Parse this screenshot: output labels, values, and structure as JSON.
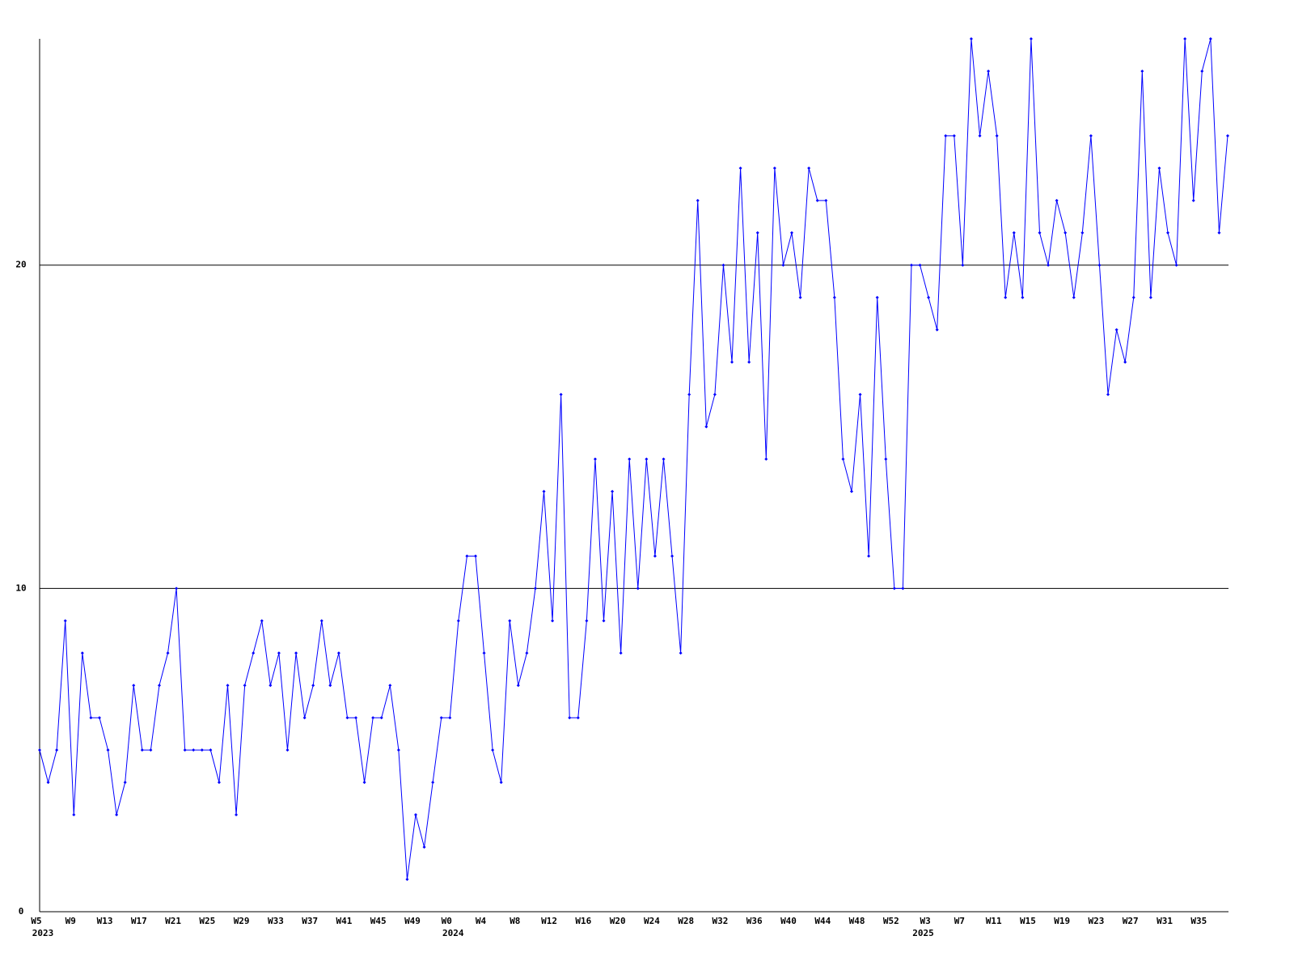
{
  "chart_data": {
    "type": "line",
    "categories": [
      "W5",
      null,
      null,
      null,
      "W9",
      null,
      null,
      null,
      "W13",
      null,
      null,
      null,
      "W17",
      null,
      null,
      null,
      "W21",
      null,
      null,
      null,
      "W25",
      null,
      null,
      null,
      "W29",
      null,
      null,
      null,
      "W33",
      null,
      null,
      null,
      "W37",
      null,
      null,
      null,
      "W41",
      null,
      null,
      null,
      "W45",
      null,
      null,
      null,
      "W49",
      null,
      null,
      null,
      "W0",
      null,
      null,
      null,
      "W4",
      null,
      null,
      null,
      "W8",
      null,
      null,
      null,
      "W12",
      null,
      null,
      null,
      "W16",
      null,
      null,
      null,
      "W20",
      null,
      null,
      null,
      "W24",
      null,
      null,
      null,
      "W28",
      null,
      null,
      null,
      "W32",
      null,
      null,
      null,
      "W36",
      null,
      null,
      null,
      "W40",
      null,
      null,
      null,
      "W44",
      null,
      null,
      null,
      "W48",
      null,
      null,
      null,
      "W52",
      null,
      null,
      null,
      "W3",
      null,
      null,
      null,
      "W7",
      null,
      null,
      null,
      "W11",
      null,
      null,
      null,
      "W15",
      null,
      null,
      null,
      "W19",
      null,
      null,
      null,
      "W23",
      null,
      null,
      null,
      "W27",
      null,
      null,
      null,
      "W31",
      null,
      null,
      null,
      "W35",
      null,
      null,
      null
    ],
    "years": [
      "2023",
      null,
      null,
      null,
      null,
      null,
      null,
      null,
      null,
      null,
      null,
      null,
      null,
      null,
      null,
      null,
      null,
      null,
      null,
      null,
      null,
      null,
      null,
      null,
      null,
      null,
      null,
      null,
      null,
      null,
      null,
      null,
      null,
      null,
      null,
      null,
      null,
      null,
      null,
      null,
      null,
      null,
      null,
      null,
      null,
      null,
      null,
      null,
      "2024",
      null,
      null,
      null,
      null,
      null,
      null,
      null,
      null,
      null,
      null,
      null,
      null,
      null,
      null,
      null,
      null,
      null,
      null,
      null,
      null,
      null,
      null,
      null,
      null,
      null,
      null,
      null,
      null,
      null,
      null,
      null,
      null,
      null,
      null,
      null,
      null,
      null,
      null,
      null,
      null,
      null,
      null,
      null,
      null,
      null,
      null,
      null,
      null,
      null,
      null,
      null,
      null,
      null,
      null,
      "2025",
      null,
      null,
      null,
      null,
      null,
      null,
      null,
      null,
      null,
      null,
      null,
      null,
      null,
      null,
      null,
      null,
      null,
      null,
      null,
      null,
      null,
      null,
      null,
      null,
      null,
      null,
      null,
      null,
      null,
      null,
      null,
      null,
      null,
      null,
      null,
      null,
      null,
      null
    ],
    "series": [
      {
        "color": "#0000ff",
        "values": [
          5,
          4,
          5,
          9,
          3,
          8,
          6,
          6,
          5,
          3,
          4,
          7,
          5,
          5,
          7,
          8,
          10,
          5,
          5,
          5,
          5,
          4,
          7,
          3,
          7,
          8,
          9,
          7,
          8,
          5,
          8,
          6,
          7,
          9,
          7,
          8,
          6,
          6,
          4,
          6,
          6,
          7,
          5,
          1,
          3,
          2,
          4,
          6,
          6,
          9,
          11,
          11,
          8,
          5,
          4,
          9,
          7,
          8,
          10,
          13,
          9,
          16,
          6,
          6,
          9,
          14,
          9,
          13,
          8,
          14,
          10,
          14,
          11,
          14,
          11,
          8,
          16,
          22,
          15,
          16,
          20,
          17,
          23,
          17,
          21,
          14,
          23,
          20,
          21,
          19,
          23,
          22,
          22,
          19,
          14,
          13,
          16,
          11,
          19,
          14,
          10,
          10,
          20,
          20,
          19,
          18,
          24,
          24,
          20,
          27,
          24,
          26,
          24,
          19,
          21,
          19,
          27,
          21,
          20,
          22,
          21,
          19,
          21,
          24,
          20,
          16,
          18,
          17,
          19,
          26,
          19,
          23,
          21,
          20,
          27,
          22,
          26,
          27,
          21,
          24
        ]
      }
    ],
    "ylim": [
      0,
      27
    ],
    "yticks": [
      0,
      10,
      20
    ],
    "grid": true
  }
}
